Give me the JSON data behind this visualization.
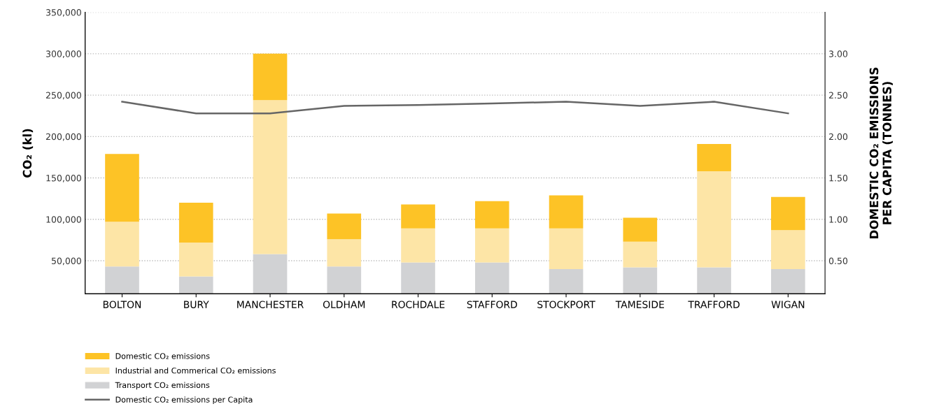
{
  "chart_data": {
    "type": "bar",
    "stacked": true,
    "categories": [
      "BOLTON",
      "BURY",
      "MANCHESTER",
      "OLDHAM",
      "ROCHDALE",
      "STAFFORD",
      "STOCKPORT",
      "TAMESIDE",
      "TRAFFORD",
      "WIGAN"
    ],
    "series": [
      {
        "name": "Transport CO₂ emissions",
        "color": "#d1d2d4",
        "values": [
          43000,
          31000,
          58000,
          43000,
          48000,
          48000,
          40000,
          42000,
          42000,
          40000
        ]
      },
      {
        "name": "Industrial and Commerical CO₂ emissions",
        "color": "#fde5a6",
        "values": [
          54000,
          41000,
          186000,
          33000,
          41000,
          41000,
          49000,
          31000,
          116000,
          47000
        ]
      },
      {
        "name": "Domestic CO₂ emissions",
        "color": "#fdc326",
        "values": [
          82000,
          48000,
          56000,
          31000,
          29000,
          33000,
          40000,
          29000,
          33000,
          40000
        ]
      },
      {
        "name": "Domestic CO₂ emissions per Capita",
        "type": "line",
        "axis": "y2",
        "color": "#666666",
        "values": [
          2.42,
          2.28,
          2.28,
          2.37,
          2.38,
          2.4,
          2.42,
          2.37,
          2.42,
          2.28
        ]
      }
    ],
    "ylabel": "CO₂ (kl)",
    "y2label": "DOMESTIC CO₂ EMISSIONS\nPER CAPITA (TONNES)",
    "ylim": [
      10000,
      350000
    ],
    "yticks": [
      {
        "value": 50000,
        "label": "50,000"
      },
      {
        "value": 100000,
        "label": "100,000"
      },
      {
        "value": 150000,
        "label": "150,000"
      },
      {
        "value": 200000,
        "label": "200,000"
      },
      {
        "value": 250000,
        "label": "250,000"
      },
      {
        "value": 300000,
        "label": "300,000"
      },
      {
        "value": 350000,
        "label": "350,000"
      }
    ],
    "y2lim": [
      0.1,
      3.5
    ],
    "y2ticks": [
      {
        "value": 0.5,
        "label": "0.50"
      },
      {
        "value": 1,
        "label": "1.00"
      },
      {
        "value": 1.5,
        "label": "1.50"
      },
      {
        "value": 2,
        "label": "2.00"
      },
      {
        "value": 2.5,
        "label": "2.50"
      },
      {
        "value": 3,
        "label": "3.00"
      }
    ],
    "grid": "y",
    "legend": "bottom left"
  }
}
